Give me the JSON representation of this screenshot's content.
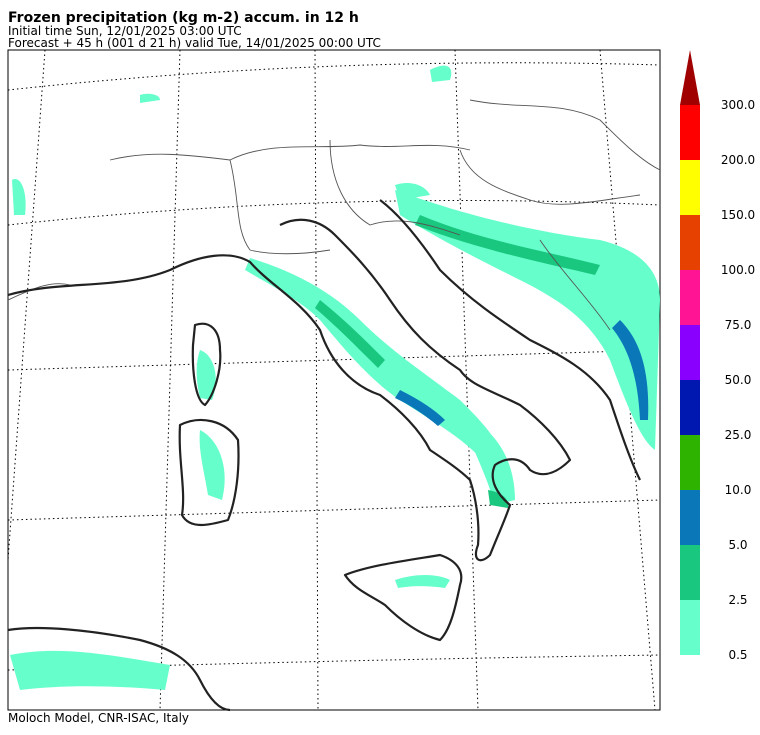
{
  "header": {
    "title": "Frozen precipitation (kg m-2) accum. in 12 h",
    "initial_time": "Initial time  Sun, 12/01/2025  03:00 UTC",
    "forecast": "Forecast  +  45 h  (001 d 21 h)  valid Tue, 14/01/2025 00:00 UTC"
  },
  "legend": {
    "levels": [
      "0.5",
      "2.5",
      "5.0",
      "10.0",
      "25.0",
      "50.0",
      "75.0",
      "100.0",
      "150.0",
      "200.0",
      "300.0"
    ],
    "colors": [
      "#66ffcc",
      "#19c77f",
      "#0a78b8",
      "#2db300",
      "#0018b0",
      "#8a00ff",
      "#ff1493",
      "#e64100",
      "#ffff00",
      "#ff0000"
    ],
    "over_color": "#a00000"
  },
  "footer": {
    "credit": "Moloch Model, CNR-ISAC, Italy"
  }
}
